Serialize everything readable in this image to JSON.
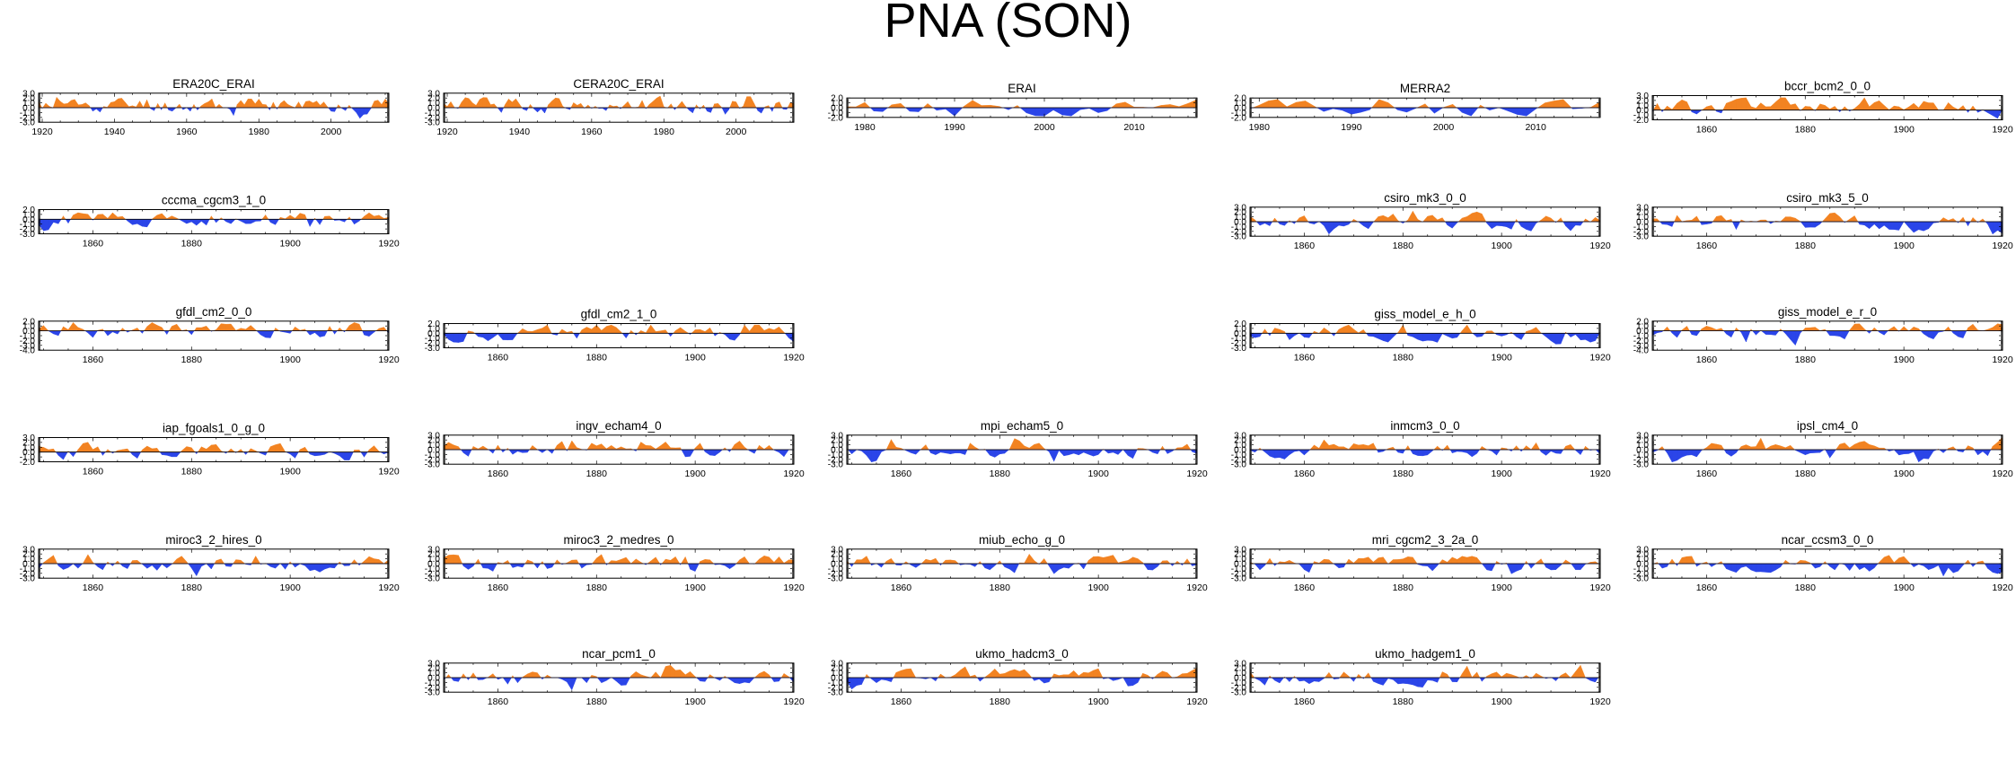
{
  "title": "PNA (SON)",
  "colors": {
    "positive": "#f28322",
    "negative": "#2b45e8",
    "axis": "#000000"
  },
  "chart_data": [
    {
      "type": "area",
      "title": "ERA20C_ERAI",
      "xlim": [
        1919,
        2016
      ],
      "ylim": [
        -3,
        3
      ],
      "yticks": [
        -3,
        -2,
        -1,
        0,
        1,
        2,
        3
      ],
      "xticks": [
        1920,
        1940,
        1960,
        1980,
        2000
      ],
      "seed": 11,
      "bias": 0.3
    },
    {
      "type": "area",
      "title": "CERA20C_ERAI",
      "xlim": [
        1919,
        2016
      ],
      "ylim": [
        -3,
        3
      ],
      "yticks": [
        -3,
        -2,
        -1,
        0,
        1,
        2,
        3
      ],
      "xticks": [
        1920,
        1940,
        1960,
        1980,
        2000
      ],
      "seed": 12,
      "bias": 0.3
    },
    {
      "type": "area",
      "title": "ERAI",
      "xlim": [
        1978,
        2017
      ],
      "ylim": [
        -2,
        2
      ],
      "yticks": [
        -2,
        -1,
        0,
        1,
        2
      ],
      "xticks": [
        1980,
        1990,
        2000,
        2010
      ],
      "seed": 13,
      "bias": 0.0
    },
    {
      "type": "area",
      "title": "MERRA2",
      "xlim": [
        1979,
        2017
      ],
      "ylim": [
        -2,
        2
      ],
      "yticks": [
        -2,
        -1,
        0,
        1,
        2
      ],
      "xticks": [
        1980,
        1990,
        2000,
        2010
      ],
      "seed": 14,
      "bias": 0.0
    },
    {
      "type": "area",
      "title": "bccr_bcm2_0_0",
      "xlim": [
        1849,
        1920
      ],
      "ylim": [
        -2,
        3
      ],
      "yticks": [
        -2,
        -1,
        0,
        1,
        2,
        3
      ],
      "xticks": [
        1860,
        1880,
        1900,
        1920
      ],
      "seed": 15,
      "bias": 0.3
    },
    {
      "type": "area",
      "title": "cccma_cgcm3_1_0",
      "xlim": [
        1849,
        1920
      ],
      "ylim": [
        -3,
        2
      ],
      "yticks": [
        -3,
        -2,
        -1,
        0,
        1,
        2
      ],
      "xticks": [
        1860,
        1880,
        1900,
        1920
      ],
      "seed": 16,
      "bias": 0.0
    },
    {
      "type": "area",
      "title": "csiro_mk3_0_0",
      "xlim": [
        1849,
        1920
      ],
      "ylim": [
        -3,
        3
      ],
      "yticks": [
        -3,
        -2,
        -1,
        0,
        1,
        2,
        3
      ],
      "xticks": [
        1860,
        1880,
        1900,
        1920
      ],
      "seed": 17,
      "bias": 0.0
    },
    {
      "type": "area",
      "title": "csiro_mk3_5_0",
      "xlim": [
        1849,
        1920
      ],
      "ylim": [
        -3,
        3
      ],
      "yticks": [
        -3,
        -2,
        -1,
        0,
        1,
        2,
        3
      ],
      "xticks": [
        1860,
        1880,
        1900,
        1920
      ],
      "seed": 18,
      "bias": 0.0
    },
    {
      "type": "area",
      "title": "gfdl_cm2_0_0",
      "xlim": [
        1849,
        1920
      ],
      "ylim": [
        -4,
        2
      ],
      "yticks": [
        -4,
        -3,
        -2,
        -1,
        0,
        1,
        2
      ],
      "xticks": [
        1860,
        1880,
        1900,
        1920
      ],
      "seed": 19,
      "bias": 0.1
    },
    {
      "type": "area",
      "title": "gfdl_cm2_1_0",
      "xlim": [
        1849,
        1920
      ],
      "ylim": [
        -3,
        2
      ],
      "yticks": [
        -3,
        -2,
        -1,
        0,
        1,
        2
      ],
      "xticks": [
        1860,
        1880,
        1900,
        1920
      ],
      "seed": 20,
      "bias": 0.0
    },
    {
      "type": "area",
      "title": "giss_model_e_h_0",
      "xlim": [
        1849,
        1920
      ],
      "ylim": [
        -3,
        2
      ],
      "yticks": [
        -3,
        -2,
        -1,
        0,
        1,
        2
      ],
      "xticks": [
        1860,
        1880,
        1900,
        1920
      ],
      "seed": 21,
      "bias": 0.0
    },
    {
      "type": "area",
      "title": "giss_model_e_r_0",
      "xlim": [
        1849,
        1920
      ],
      "ylim": [
        -4,
        2
      ],
      "yticks": [
        -4,
        -3,
        -2,
        -1,
        0,
        1,
        2
      ],
      "xticks": [
        1860,
        1880,
        1900,
        1920
      ],
      "seed": 22,
      "bias": 0.1
    },
    {
      "type": "area",
      "title": "iap_fgoals1_0_g_0",
      "xlim": [
        1849,
        1920
      ],
      "ylim": [
        -2,
        3
      ],
      "yticks": [
        -2,
        -1,
        0,
        1,
        2,
        3
      ],
      "xticks": [
        1860,
        1880,
        1900,
        1920
      ],
      "seed": 23,
      "bias": 0.0
    },
    {
      "type": "area",
      "title": "ingv_echam4_0",
      "xlim": [
        1849,
        1920
      ],
      "ylim": [
        -3,
        3
      ],
      "yticks": [
        -3,
        -2,
        -1,
        0,
        1,
        2,
        3
      ],
      "xticks": [
        1860,
        1880,
        1900,
        1920
      ],
      "seed": 24,
      "bias": 0.1
    },
    {
      "type": "area",
      "title": "mpi_echam5_0",
      "xlim": [
        1849,
        1920
      ],
      "ylim": [
        -3,
        3
      ],
      "yticks": [
        -3,
        -2,
        -1,
        0,
        1,
        2,
        3
      ],
      "xticks": [
        1860,
        1880,
        1900,
        1920
      ],
      "seed": 25,
      "bias": 0.0
    },
    {
      "type": "area",
      "title": "inmcm3_0_0",
      "xlim": [
        1849,
        1920
      ],
      "ylim": [
        -3,
        3
      ],
      "yticks": [
        -3,
        -2,
        -1,
        0,
        1,
        2,
        3
      ],
      "xticks": [
        1860,
        1880,
        1900,
        1920
      ],
      "seed": 26,
      "bias": 0.0
    },
    {
      "type": "area",
      "title": "ipsl_cm4_0",
      "xlim": [
        1849,
        1920
      ],
      "ylim": [
        -3,
        3
      ],
      "yticks": [
        -3,
        -2,
        -1,
        0,
        1,
        2,
        3
      ],
      "xticks": [
        1860,
        1880,
        1900,
        1920
      ],
      "seed": 27,
      "bias": 0.0
    },
    {
      "type": "area",
      "title": "miroc3_2_hires_0",
      "xlim": [
        1849,
        1920
      ],
      "ylim": [
        -3,
        3
      ],
      "yticks": [
        -3,
        -2,
        -1,
        0,
        1,
        2,
        3
      ],
      "xticks": [
        1860,
        1880,
        1900,
        1920
      ],
      "seed": 28,
      "bias": 0.0
    },
    {
      "type": "area",
      "title": "miroc3_2_medres_0",
      "xlim": [
        1849,
        1920
      ],
      "ylim": [
        -3,
        3
      ],
      "yticks": [
        -3,
        -2,
        -1,
        0,
        1,
        2,
        3
      ],
      "xticks": [
        1860,
        1880,
        1900,
        1920
      ],
      "seed": 29,
      "bias": 0.0
    },
    {
      "type": "area",
      "title": "miub_echo_g_0",
      "xlim": [
        1849,
        1920
      ],
      "ylim": [
        -3,
        3
      ],
      "yticks": [
        -3,
        -2,
        -1,
        0,
        1,
        2,
        3
      ],
      "xticks": [
        1860,
        1880,
        1900,
        1920
      ],
      "seed": 30,
      "bias": -0.1
    },
    {
      "type": "area",
      "title": "mri_cgcm2_3_2a_0",
      "xlim": [
        1849,
        1920
      ],
      "ylim": [
        -3,
        3
      ],
      "yticks": [
        -3,
        -2,
        -1,
        0,
        1,
        2,
        3
      ],
      "xticks": [
        1860,
        1880,
        1900,
        1920
      ],
      "seed": 31,
      "bias": 0.0
    },
    {
      "type": "area",
      "title": "ncar_ccsm3_0_0",
      "xlim": [
        1849,
        1920
      ],
      "ylim": [
        -3,
        3
      ],
      "yticks": [
        -3,
        -2,
        -1,
        0,
        1,
        2,
        3
      ],
      "xticks": [
        1860,
        1880,
        1900,
        1920
      ],
      "seed": 32,
      "bias": 0.0
    },
    {
      "type": "area",
      "title": "ncar_pcm1_0",
      "xlim": [
        1849,
        1920
      ],
      "ylim": [
        -3,
        3
      ],
      "yticks": [
        -3,
        -2,
        -1,
        0,
        1,
        2,
        3
      ],
      "xticks": [
        1860,
        1880,
        1900,
        1920
      ],
      "seed": 33,
      "bias": 0.0
    },
    {
      "type": "area",
      "title": "ukmo_hadcm3_0",
      "xlim": [
        1849,
        1920
      ],
      "ylim": [
        -3,
        3
      ],
      "yticks": [
        -3,
        -2,
        -1,
        0,
        1,
        2,
        3
      ],
      "xticks": [
        1860,
        1880,
        1900,
        1920
      ],
      "seed": 34,
      "bias": 0.2
    },
    {
      "type": "area",
      "title": "ukmo_hadgem1_0",
      "xlim": [
        1849,
        1920
      ],
      "ylim": [
        -3,
        3
      ],
      "yticks": [
        -3,
        -2,
        -1,
        0,
        1,
        2,
        3
      ],
      "xticks": [
        1860,
        1880,
        1900,
        1920
      ],
      "seed": 35,
      "bias": 0.0
    }
  ]
}
